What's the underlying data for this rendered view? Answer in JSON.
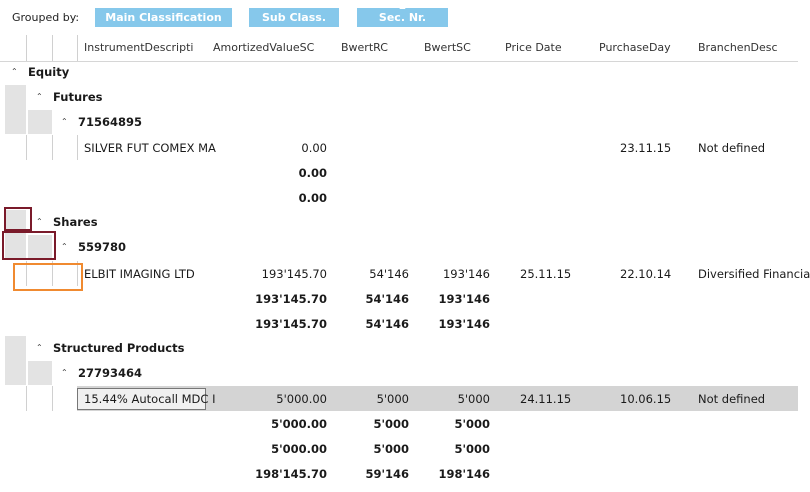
{
  "grouping": {
    "label": "Grouped by:",
    "chips": [
      "Main Classification",
      "Sub Class.",
      "Sec. Nr."
    ]
  },
  "columns": [
    "InstrumentDescripti",
    "AmortizedValueSC",
    "BwertRC",
    "BwertSC",
    "Price Date",
    "PurchaseDay",
    "BranchenDesc"
  ],
  "equity": {
    "title": "Equity",
    "futures": {
      "title": "Futures",
      "secnr": "71564895",
      "item": {
        "desc": "SILVER FUT COMEX MA",
        "amort": "0.00",
        "purchase": "23.11.15",
        "branche": "Not defined"
      },
      "sum_secnr": "0.00",
      "sum_sub": "0.00"
    },
    "shares": {
      "title": "Shares",
      "secnr": "559780",
      "item": {
        "desc": "ELBIT IMAGING LTD",
        "amort": "193'145.70",
        "bwertrc": "54'146",
        "bwertsc": "193'146",
        "price_date": "25.11.15",
        "purchase": "22.10.14",
        "branche": "Diversified Financia"
      },
      "sum_secnr": {
        "amort": "193'145.70",
        "bwertrc": "54'146",
        "bwertsc": "193'146"
      },
      "sum_sub": {
        "amort": "193'145.70",
        "bwertrc": "54'146",
        "bwertsc": "193'146"
      }
    },
    "structured": {
      "title": "Structured Products",
      "secnr": "27793464",
      "item": {
        "desc": "15.44% Autocall MDC I",
        "amort": "5'000.00",
        "bwertrc": "5'000",
        "bwertsc": "5'000",
        "price_date": "24.11.15",
        "purchase": "10.06.15",
        "branche": "Not defined"
      },
      "sum_secnr": {
        "amort": "5'000.00",
        "bwertrc": "5'000",
        "bwertsc": "5'000"
      },
      "sum_sub": {
        "amort": "5'000.00",
        "bwertrc": "5'000",
        "bwertsc": "5'000"
      }
    },
    "total": {
      "amort": "198'145.70",
      "bwertrc": "59'146",
      "bwertsc": "198'146"
    }
  },
  "icons": {
    "collapse": "chevron-up-icon",
    "sort": "caret-up-icon"
  },
  "colors": {
    "chip": "#86c8eb",
    "selected_row": "#d4d4d4",
    "marker_dark": "#7a1a2a",
    "marker_orange": "#f08a30"
  }
}
